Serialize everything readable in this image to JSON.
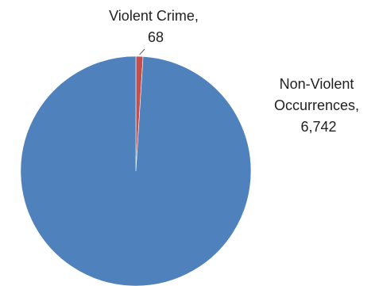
{
  "chart_data": {
    "type": "pie",
    "categories": [
      "Violent Crime",
      "Non-Violent Occurrences"
    ],
    "values": [
      68,
      6742
    ],
    "colors": [
      "#c0504d",
      "#4f81bd"
    ],
    "data_labels": [
      {
        "lines": [
          "Violent Crime,",
          "68"
        ]
      },
      {
        "lines": [
          "Non-Violent",
          "Occurrences,",
          "6,742"
        ]
      }
    ],
    "start_angle_deg": 0,
    "direction": "clockwise",
    "legend": "none"
  }
}
